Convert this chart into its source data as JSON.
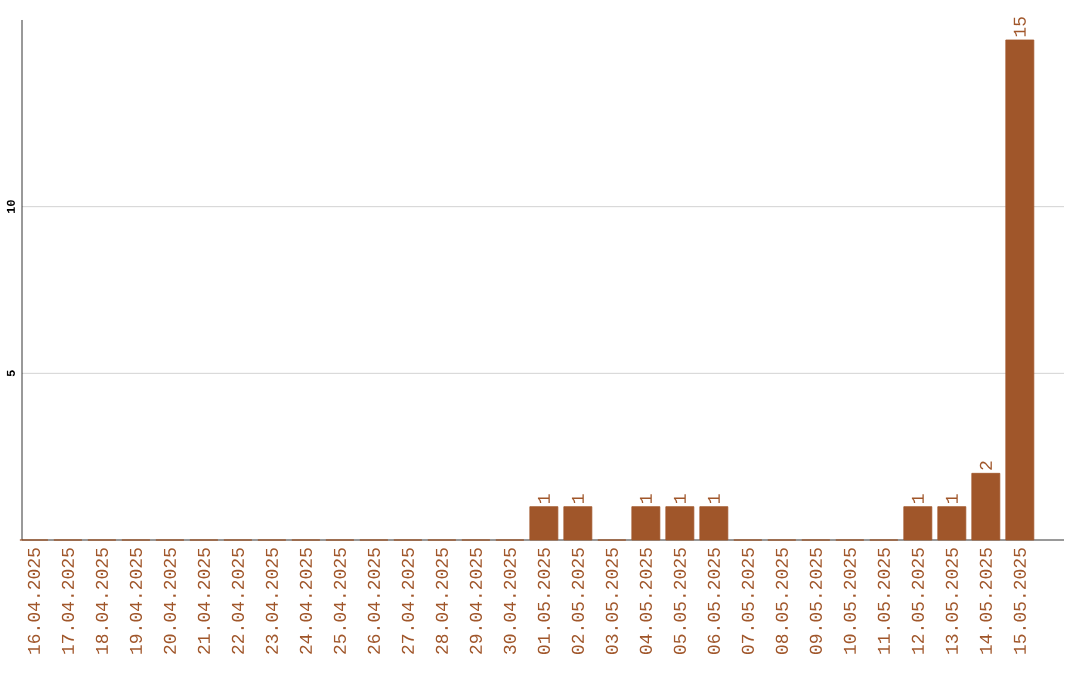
{
  "chart_data": {
    "type": "bar",
    "categories": [
      "16.04.2025",
      "17.04.2025",
      "18.04.2025",
      "19.04.2025",
      "20.04.2025",
      "21.04.2025",
      "22.04.2025",
      "23.04.2025",
      "24.04.2025",
      "25.04.2025",
      "26.04.2025",
      "27.04.2025",
      "28.04.2025",
      "29.04.2025",
      "30.04.2025",
      "01.05.2025",
      "02.05.2025",
      "03.05.2025",
      "04.05.2025",
      "05.05.2025",
      "06.05.2025",
      "07.05.2025",
      "08.05.2025",
      "09.05.2025",
      "10.05.2025",
      "11.05.2025",
      "12.05.2025",
      "13.05.2025",
      "14.05.2025",
      "15.05.2025"
    ],
    "values": [
      0,
      0,
      0,
      0,
      0,
      0,
      0,
      0,
      0,
      0,
      0,
      0,
      0,
      0,
      0,
      1,
      1,
      0,
      1,
      1,
      1,
      0,
      0,
      0,
      0,
      0,
      1,
      1,
      2,
      15
    ],
    "value_labels": [
      null,
      null,
      null,
      null,
      null,
      null,
      null,
      null,
      null,
      null,
      null,
      null,
      null,
      null,
      null,
      "1",
      "1",
      null,
      "1",
      "1",
      "1",
      null,
      null,
      null,
      null,
      null,
      "1",
      "1",
      "2",
      "15"
    ],
    "color": "#a0562a",
    "ylim": [
      0,
      15.6
    ],
    "yticks": [
      5,
      10
    ],
    "grid": "y"
  }
}
